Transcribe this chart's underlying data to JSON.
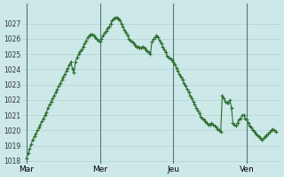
{
  "background_color": "#cce8e8",
  "grid_color": "#aacccc",
  "line_color": "#2d6e2d",
  "marker_color": "#2d6e2d",
  "ylim": [
    1018,
    1028
  ],
  "yticks": [
    1018,
    1019,
    1020,
    1021,
    1022,
    1023,
    1024,
    1025,
    1026,
    1027
  ],
  "xtick_labels": [
    "Mar",
    "Mer",
    "Jeu",
    "Ven"
  ],
  "xtick_positions": [
    0,
    48,
    96,
    144
  ],
  "vline_positions": [
    0,
    48,
    96,
    144
  ],
  "y_values": [
    1018.2,
    1018.5,
    1018.8,
    1019.1,
    1019.4,
    1019.6,
    1019.8,
    1020.0,
    1020.2,
    1020.4,
    1020.6,
    1020.8,
    1021.0,
    1021.2,
    1021.5,
    1021.7,
    1021.9,
    1022.1,
    1022.3,
    1022.5,
    1022.7,
    1022.9,
    1023.1,
    1023.3,
    1023.5,
    1023.7,
    1023.9,
    1024.1,
    1024.3,
    1024.5,
    1024.0,
    1023.8,
    1024.5,
    1024.8,
    1025.0,
    1025.2,
    1025.3,
    1025.5,
    1025.7,
    1025.9,
    1026.1,
    1026.2,
    1026.3,
    1026.3,
    1026.2,
    1026.1,
    1026.0,
    1025.9,
    1025.8,
    1026.0,
    1026.2,
    1026.4,
    1026.5,
    1026.7,
    1026.8,
    1027.0,
    1027.2,
    1027.3,
    1027.4,
    1027.4,
    1027.3,
    1027.2,
    1027.0,
    1026.8,
    1026.6,
    1026.4,
    1026.2,
    1026.0,
    1025.9,
    1025.8,
    1025.7,
    1025.6,
    1025.5,
    1025.5,
    1025.4,
    1025.4,
    1025.5,
    1025.4,
    1025.3,
    1025.2,
    1025.1,
    1025.0,
    1025.8,
    1026.0,
    1026.1,
    1026.2,
    1026.1,
    1025.9,
    1025.7,
    1025.5,
    1025.3,
    1025.1,
    1024.9,
    1024.8,
    1024.7,
    1024.6,
    1024.5,
    1024.3,
    1024.1,
    1023.9,
    1023.7,
    1023.5,
    1023.3,
    1023.1,
    1022.9,
    1022.7,
    1022.5,
    1022.3,
    1022.1,
    1021.9,
    1021.7,
    1021.5,
    1021.3,
    1021.1,
    1020.9,
    1020.8,
    1020.7,
    1020.6,
    1020.5,
    1020.4,
    1020.4,
    1020.5,
    1020.4,
    1020.3,
    1020.2,
    1020.1,
    1020.0,
    1019.9,
    1022.3,
    1022.1,
    1021.9,
    1021.8,
    1021.8,
    1022.0,
    1021.5,
    1020.5,
    1020.4,
    1020.3,
    1020.5,
    1020.7,
    1020.8,
    1021.0,
    1021.0,
    1020.8,
    1020.7,
    1020.5,
    1020.3,
    1020.2,
    1020.0,
    1019.9,
    1019.8,
    1019.7,
    1019.6,
    1019.5,
    1019.4,
    1019.5,
    1019.6,
    1019.7,
    1019.8,
    1019.9,
    1020.0,
    1020.1,
    1020.0,
    1019.9
  ]
}
